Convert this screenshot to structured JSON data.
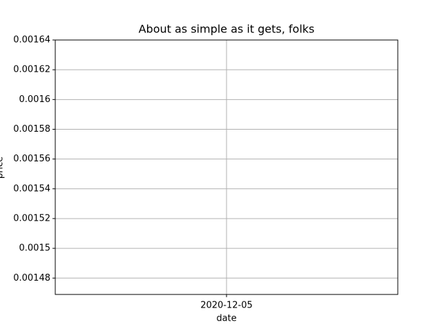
{
  "chart_data": {
    "type": "line",
    "title": "About as simple as it gets, folks",
    "xlabel": "date",
    "ylabel": "price",
    "xticks": [
      "2020-12-05"
    ],
    "ylim": [
      0.001469,
      0.00164
    ],
    "yticks": [
      0.00148,
      0.0015,
      0.00152,
      0.00154,
      0.00156,
      0.00158,
      0.0016,
      0.00162,
      0.00164
    ],
    "ytick_labels_note": null,
    "grid": true
  }
}
